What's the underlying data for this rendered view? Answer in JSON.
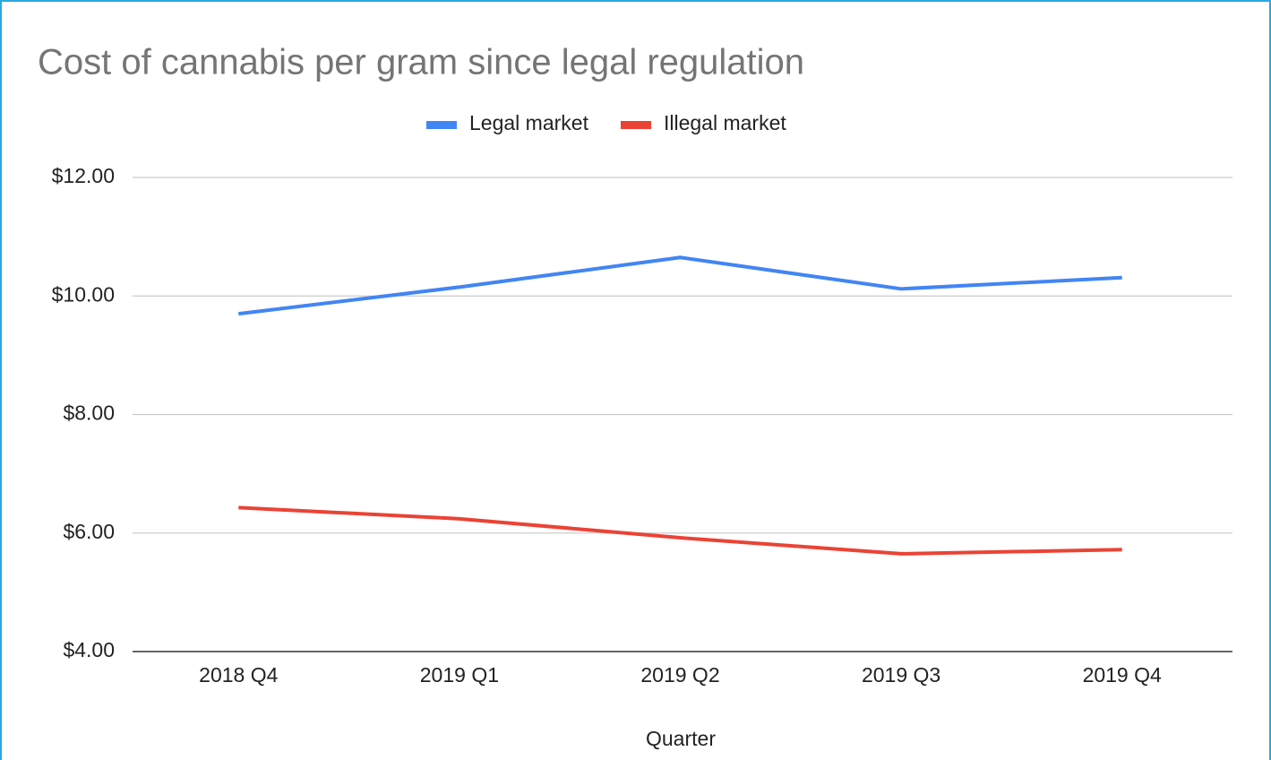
{
  "chart_data": {
    "type": "line",
    "title": "Cost of cannabis per gram since legal regulation",
    "xlabel": "Quarter",
    "categories": [
      "2018 Q4",
      "2019 Q1",
      "2019 Q2",
      "2019 Q3",
      "2019 Q4"
    ],
    "series": [
      {
        "name": "Legal market",
        "color": "#4285f4",
        "values": [
          9.7,
          10.15,
          10.65,
          10.12,
          10.31
        ]
      },
      {
        "name": "Illegal market",
        "color": "#ea4335",
        "values": [
          6.43,
          6.24,
          5.92,
          5.65,
          5.72
        ]
      }
    ],
    "ylim": [
      4,
      12
    ],
    "yticks": [
      {
        "value": 4,
        "label": "$4.00"
      },
      {
        "value": 6,
        "label": "$6.00"
      },
      {
        "value": 8,
        "label": "$8.00"
      },
      {
        "value": 10,
        "label": "$10.00"
      },
      {
        "value": 12,
        "label": "$12.00"
      }
    ],
    "grid": true,
    "legend": "top"
  }
}
